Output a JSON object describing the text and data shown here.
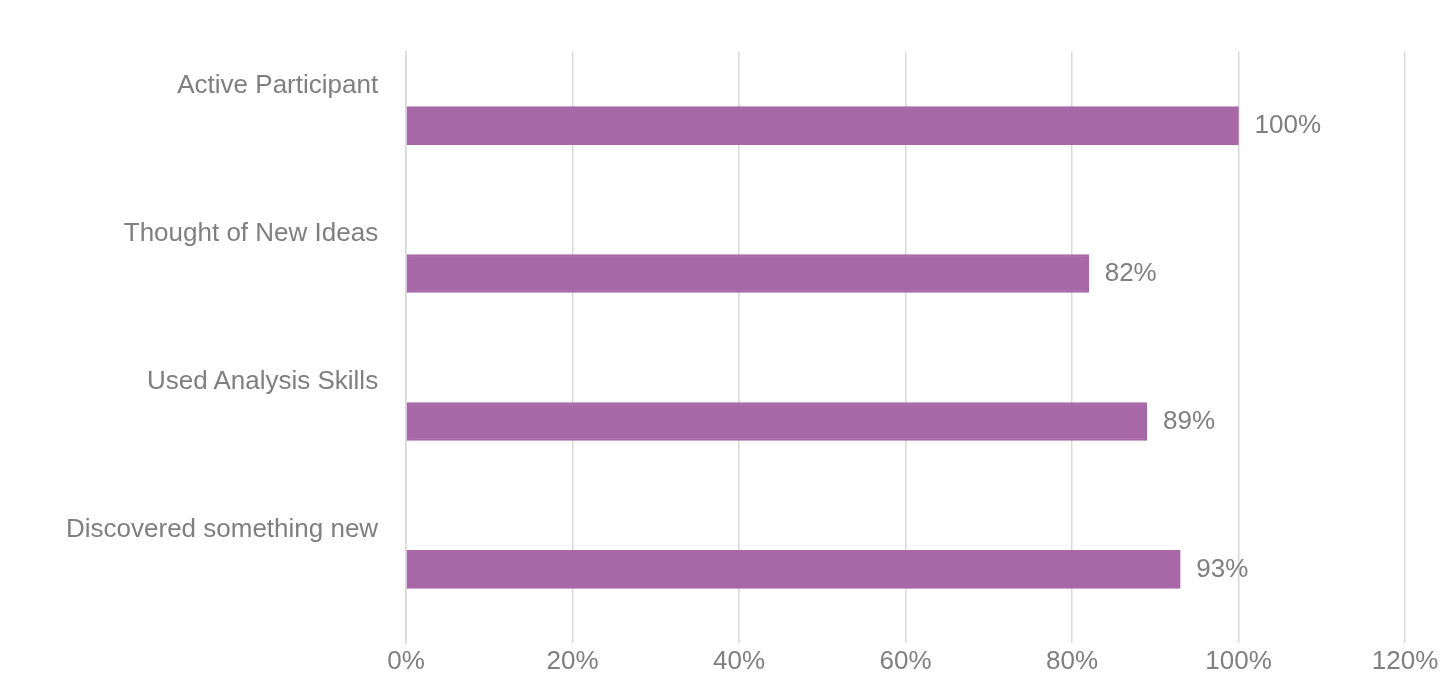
{
  "chart_data": {
    "type": "bar",
    "orientation": "horizontal",
    "categories": [
      "Active Participant",
      "Thought of New Ideas",
      "Used Analysis Skills",
      "Discovered something new"
    ],
    "values": [
      100,
      82,
      89,
      93
    ],
    "value_labels": [
      "100%",
      "82%",
      "89%",
      "93%"
    ],
    "color": "#a868a8",
    "xlim": [
      0,
      120
    ],
    "xticks": [
      {
        "value": 0,
        "label": "0%"
      },
      {
        "value": 20,
        "label": "20%"
      },
      {
        "value": 40,
        "label": "40%"
      },
      {
        "value": 60,
        "label": "60%"
      },
      {
        "value": 80,
        "label": "80%"
      },
      {
        "value": 100,
        "label": "100%"
      },
      {
        "value": 120,
        "label": "120%"
      }
    ],
    "grid": "x",
    "legend": false
  }
}
